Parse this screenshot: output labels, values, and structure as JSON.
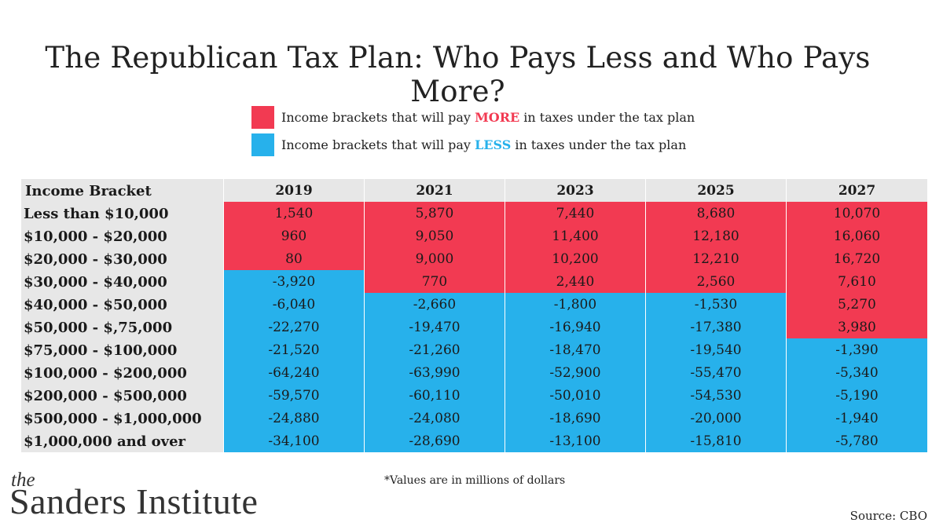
{
  "colors": {
    "more": "#f23a52",
    "less": "#27b1eb",
    "header_bg": "#e7e7e7"
  },
  "chart_data": {
    "type": "table",
    "title": "The Republican Tax Plan: Who Pays Less and Who Pays More?",
    "legend": [
      {
        "key": "more",
        "prefix": "Income brackets that will pay ",
        "word": "MORE",
        "suffix": " in taxes under the tax plan"
      },
      {
        "key": "less",
        "prefix": "Income brackets that will pay ",
        "word": "LESS",
        "suffix": " in taxes under the tax plan"
      }
    ],
    "row_header": "Income Bracket",
    "columns": [
      "2019",
      "2021",
      "2023",
      "2025",
      "2027"
    ],
    "rows": [
      {
        "label": "Less than $10,000",
        "values": [
          "1,540",
          "5,870",
          "7,440",
          "8,680",
          "10,070"
        ]
      },
      {
        "label": "$10,000 - $20,000",
        "values": [
          "960",
          "9,050",
          "11,400",
          "12,180",
          "16,060"
        ]
      },
      {
        "label": "$20,000 - $30,000",
        "values": [
          "80",
          "9,000",
          "10,200",
          "12,210",
          "16,720"
        ]
      },
      {
        "label": "$30,000 - $40,000",
        "values": [
          "-3,920",
          "770",
          "2,440",
          "2,560",
          "7,610"
        ]
      },
      {
        "label": "$40,000 - $50,000",
        "values": [
          "-6,040",
          "-2,660",
          "-1,800",
          "-1,530",
          "5,270"
        ]
      },
      {
        "label": "$50,000 - $,75,000",
        "values": [
          "-22,270",
          "-19,470",
          "-16,940",
          "-17,380",
          "3,980"
        ]
      },
      {
        "label": "$75,000 - $100,000",
        "values": [
          "-21,520",
          "-21,260",
          "-18,470",
          "-19,540",
          "-1,390"
        ]
      },
      {
        "label": "$100,000 - $200,000",
        "values": [
          "-64,240",
          "-63,990",
          "-52,900",
          "-55,470",
          "-5,340"
        ]
      },
      {
        "label": "$200,000 - $500,000",
        "values": [
          "-59,570",
          "-60,110",
          "-50,010",
          "-54,530",
          "-5,190"
        ]
      },
      {
        "label": "$500,000 - $1,000,000",
        "values": [
          "-24,880",
          "-24,080",
          "-18,690",
          "-20,000",
          "-1,940"
        ]
      },
      {
        "label": "$1,000,000 and over",
        "values": [
          "-34,100",
          "-28,690",
          "-13,100",
          "-15,810",
          "-5,780"
        ]
      }
    ],
    "unit_note": "*Values are in millions of dollars",
    "source": "Source: CBO"
  },
  "branding": {
    "the": "the",
    "name": "Sanders Institute"
  }
}
